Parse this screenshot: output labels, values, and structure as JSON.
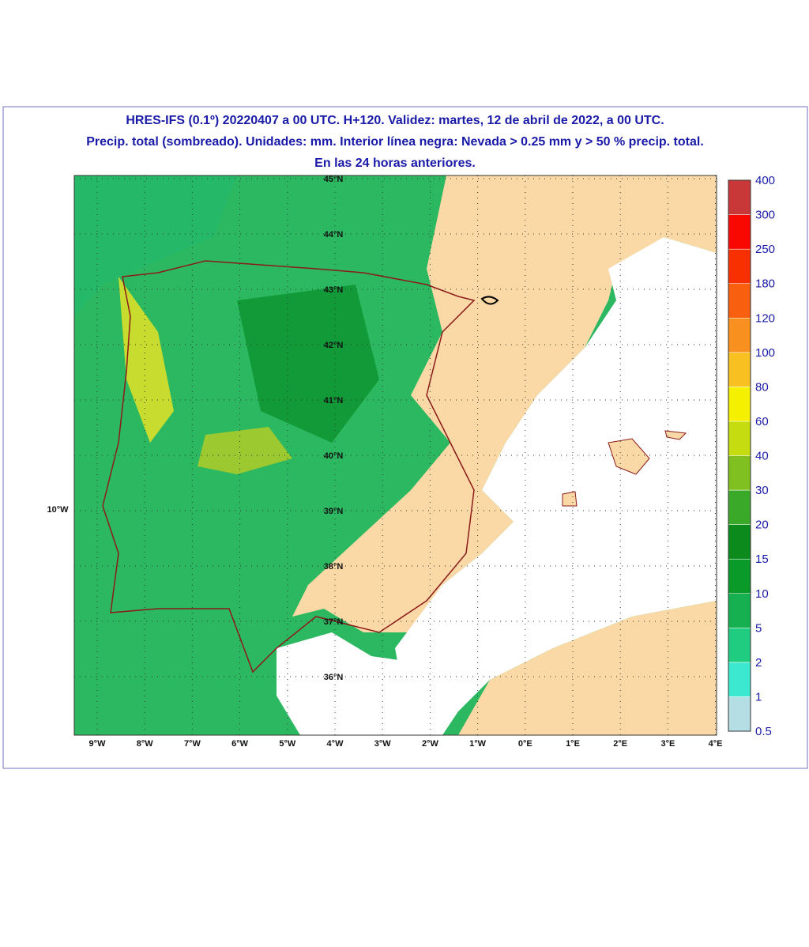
{
  "header": {
    "title_lines": [
      "HRES-IFS (0.1º) 20220407 a 00 UTC. H+120. Validez: martes, 12 de abril de 2022, a 00 UTC.",
      "Precip. total (sombreado). Unidades: mm. Interior línea negra: Nevada > 0.25 mm y > 50 % precip. total.",
      "En las 24 horas anteriores."
    ]
  },
  "map": {
    "lat_labels": [
      "45°N",
      "44°N",
      "43°N",
      "42°N",
      "41°N",
      "40°N",
      "39°N",
      "38°N",
      "37°N",
      "36°N"
    ],
    "lon_labels": [
      "9°W",
      "8°W",
      "7°W",
      "6°W",
      "5°W",
      "4°W",
      "3°W",
      "2°W",
      "1°W",
      "0°E",
      "1°E",
      "2°E",
      "3°E",
      "4°E"
    ],
    "side_label": "10°W"
  },
  "colorbar": {
    "levels": [
      0.5,
      1,
      2,
      5,
      10,
      15,
      20,
      30,
      40,
      60,
      80,
      100,
      120,
      180,
      250,
      300,
      400
    ],
    "colors": [
      "#b4dde4",
      "#3de8d0",
      "#20cc80",
      "#17b050",
      "#0a9a2a",
      "#0c8a1c",
      "#3aa828",
      "#80c020",
      "#c4dc10",
      "#f4f000",
      "#f8c020",
      "#f89020",
      "#f86010",
      "#f83000",
      "#f80800",
      "#c83838"
    ]
  }
}
